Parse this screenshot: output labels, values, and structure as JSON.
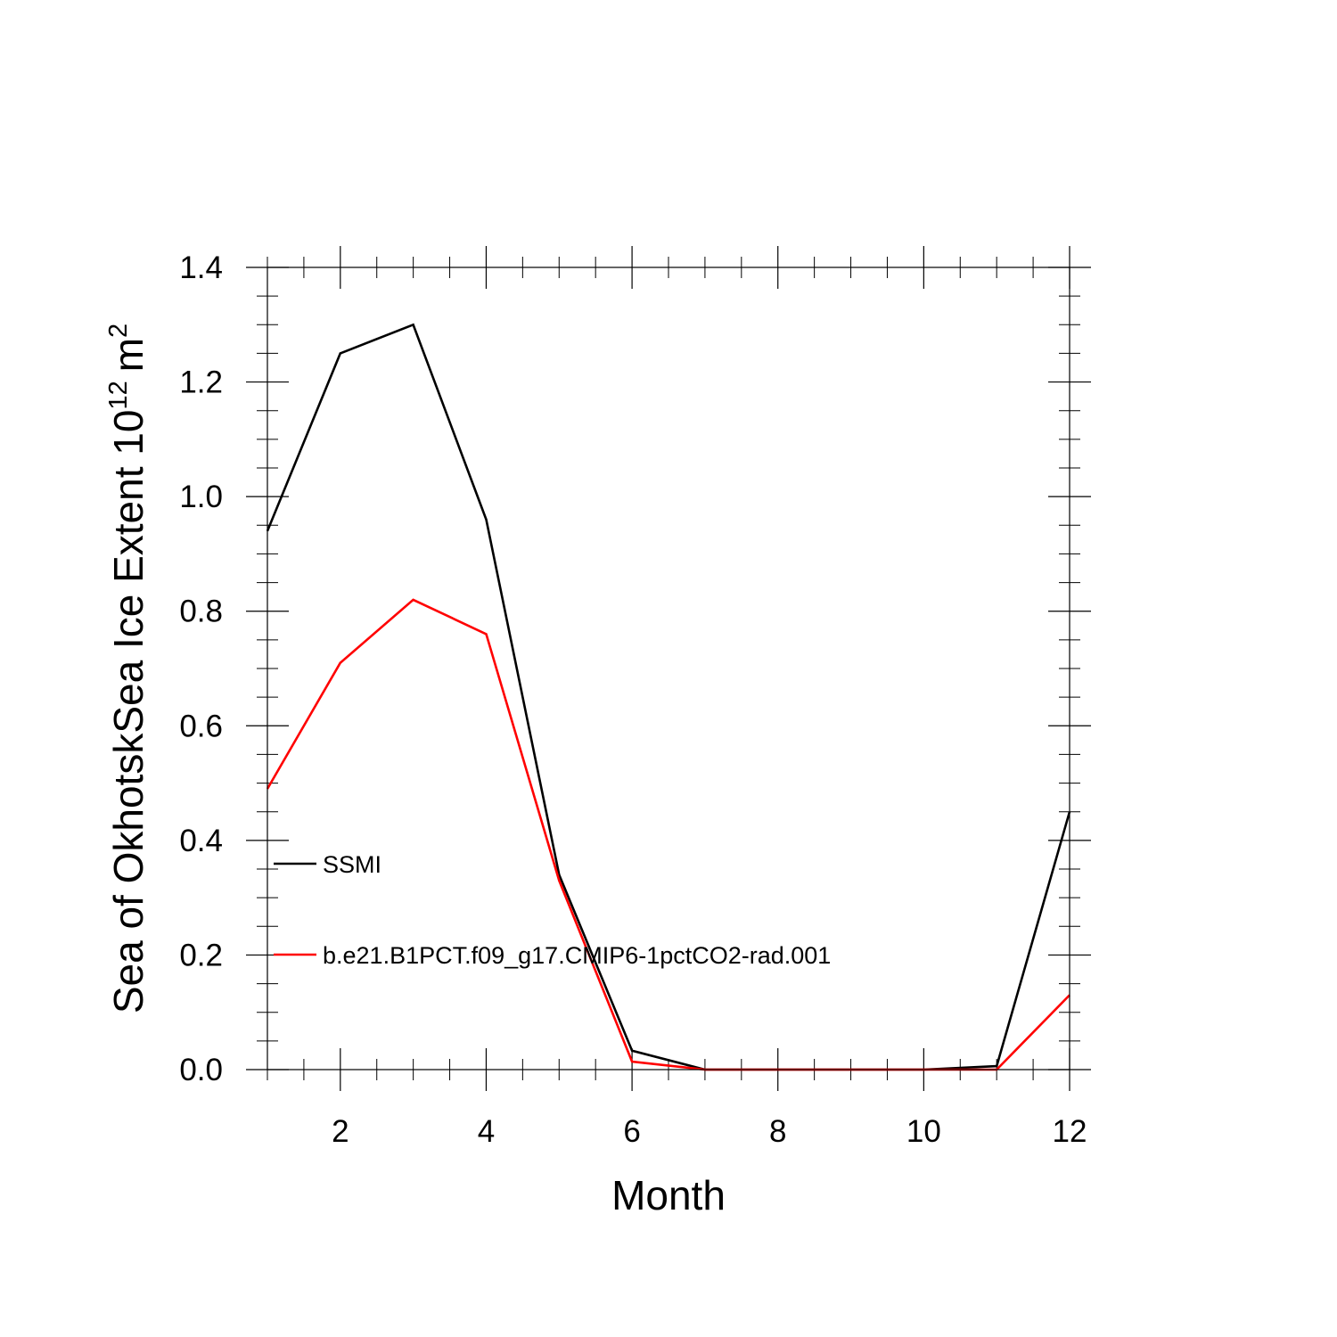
{
  "chart_data": {
    "type": "line",
    "title": "",
    "xlabel": "Month",
    "ylabel": {
      "main": "Sea of OkhotskSea Ice Extent 10",
      "exponent": "12",
      "unit": "m",
      "unit_exponent": "2"
    },
    "xlim": [
      1,
      12
    ],
    "ylim": [
      0,
      1.4
    ],
    "xticks": [
      2,
      4,
      6,
      8,
      10,
      12
    ],
    "xtick_labels": [
      "2",
      "4",
      "6",
      "8",
      "10",
      "12"
    ],
    "yticks": [
      0,
      0.2,
      0.4,
      0.6,
      0.8,
      1.0,
      1.2,
      1.4
    ],
    "ytick_labels": [
      "0.0",
      "0.2",
      "0.4",
      "0.6",
      "0.8",
      "1.0",
      "1.2",
      "1.4"
    ],
    "grid": false,
    "legend_position": "left, inside plot",
    "x": [
      1,
      2,
      3,
      4,
      5,
      6,
      7,
      8,
      9,
      10,
      11,
      12
    ],
    "series": [
      {
        "name": "SSMI",
        "color": "#000000",
        "values": [
          0.94,
          1.25,
          1.3,
          0.96,
          0.34,
          0.033,
          0.0,
          0.0,
          0.0,
          0.0,
          0.006,
          0.45
        ]
      },
      {
        "name": "b.e21.B1PCT.f09_g17.CMIP6-1pctCO2-rad.001",
        "color": "#ff0000",
        "values": [
          0.49,
          0.71,
          0.82,
          0.76,
          0.33,
          0.014,
          0.0,
          0.0,
          0.0,
          0.0,
          0.0,
          0.13
        ]
      }
    ]
  }
}
